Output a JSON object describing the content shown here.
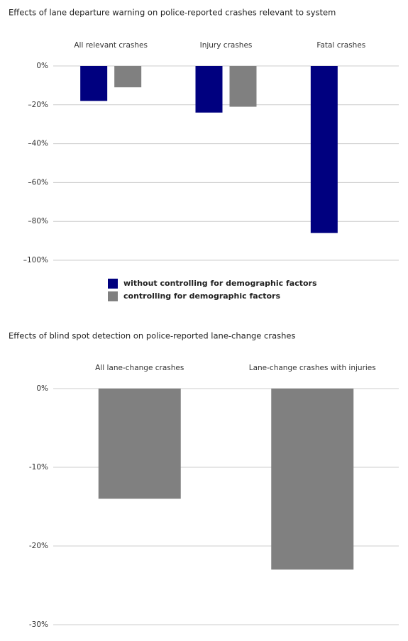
{
  "chart_data": [
    {
      "type": "bar",
      "title": "Effects of lane departure warning on police-reported crashes relevant to system",
      "categories": [
        "All relevant crashes",
        "Injury crashes",
        "Fatal crashes"
      ],
      "series": [
        {
          "name": "without controlling for demographic factors",
          "color": "#00007f",
          "values": [
            -18,
            -24,
            -86
          ]
        },
        {
          "name": "controlling for demographic factors",
          "color": "#808080",
          "values": [
            -11,
            -21,
            null
          ]
        }
      ],
      "ylim": [
        -100,
        0
      ],
      "yticks": [
        {
          "value": 0,
          "label": "0%"
        },
        {
          "value": -20,
          "label": "–20%"
        },
        {
          "value": -40,
          "label": "–40%"
        },
        {
          "value": -60,
          "label": "–60%"
        },
        {
          "value": -80,
          "label": "–80%"
        },
        {
          "value": -100,
          "label": "–100%"
        }
      ],
      "grid": true
    },
    {
      "type": "bar",
      "title": "Effects of blind spot detection on police-reported lane-change crashes",
      "categories": [
        "All lane-change crashes",
        "Lane-change crashes with injuries"
      ],
      "values": [
        -14,
        -23
      ],
      "color": "#808080",
      "ylim": [
        -30,
        0
      ],
      "yticks": [
        {
          "value": 0,
          "label": "0%"
        },
        {
          "value": -10,
          "label": "-10%"
        },
        {
          "value": -20,
          "label": "-20%"
        },
        {
          "value": -30,
          "label": "-30%"
        }
      ],
      "grid": true
    }
  ]
}
